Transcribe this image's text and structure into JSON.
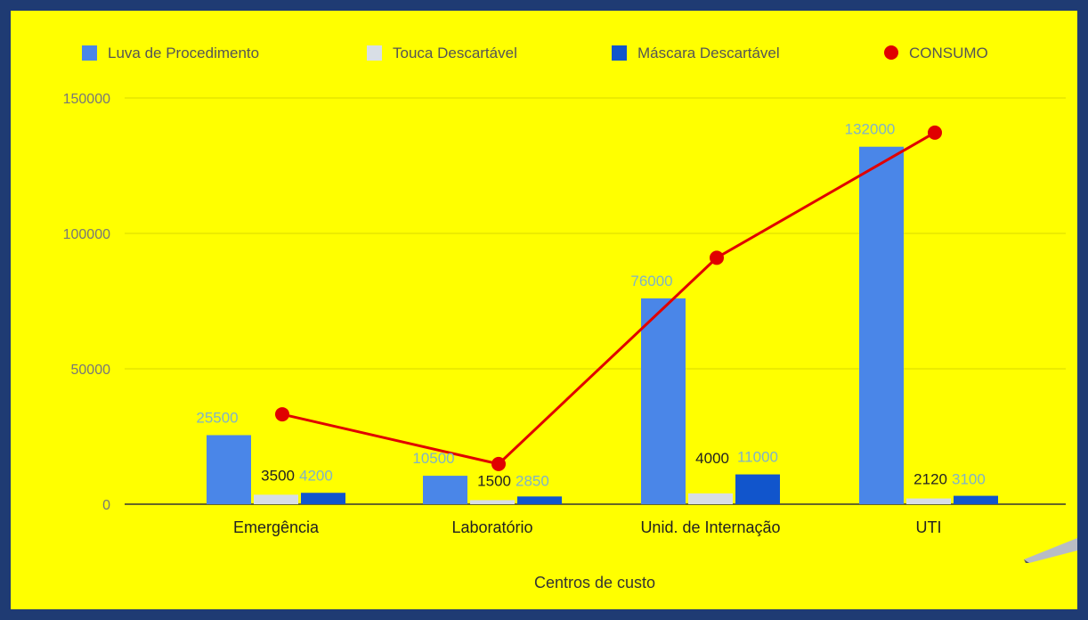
{
  "chart_data": {
    "type": "bar",
    "categories": [
      "Emergência",
      "Laboratório",
      "Unid. de Internação",
      "UTI"
    ],
    "series": [
      {
        "name": "Luva de Procedimento",
        "kind": "bar",
        "color": "#4a86e8",
        "label_color": "#7fb3c8",
        "values": [
          25500,
          10500,
          76000,
          132000
        ],
        "labels": [
          "25500",
          "10500",
          "76000",
          "132000"
        ]
      },
      {
        "name": "Touca Descartável",
        "kind": "bar",
        "color": "#d8dee6",
        "label_color": "#222222",
        "values": [
          3500,
          1500,
          4000,
          2120
        ],
        "labels": [
          "3500",
          "1500",
          "4000",
          "2120"
        ]
      },
      {
        "name": "Máscara Descartável",
        "kind": "bar",
        "color": "#1155cc",
        "label_color": "#7fb3c8",
        "values": [
          4200,
          2850,
          11000,
          3100
        ],
        "labels": [
          "4200",
          "2850",
          "11000",
          "3100"
        ]
      },
      {
        "name": "CONSUMO",
        "kind": "line",
        "color": "#e00000",
        "values": [
          33200,
          14850,
          91000,
          137220
        ]
      }
    ],
    "xlabel": "Centros de custo",
    "ylabel": "",
    "ylim": [
      0,
      150000
    ],
    "yticks": [
      "150000",
      "100000",
      "50000",
      "0"
    ],
    "ytick_values": [
      150000,
      100000,
      50000,
      0
    ],
    "grid": true,
    "legend_position": "top"
  }
}
